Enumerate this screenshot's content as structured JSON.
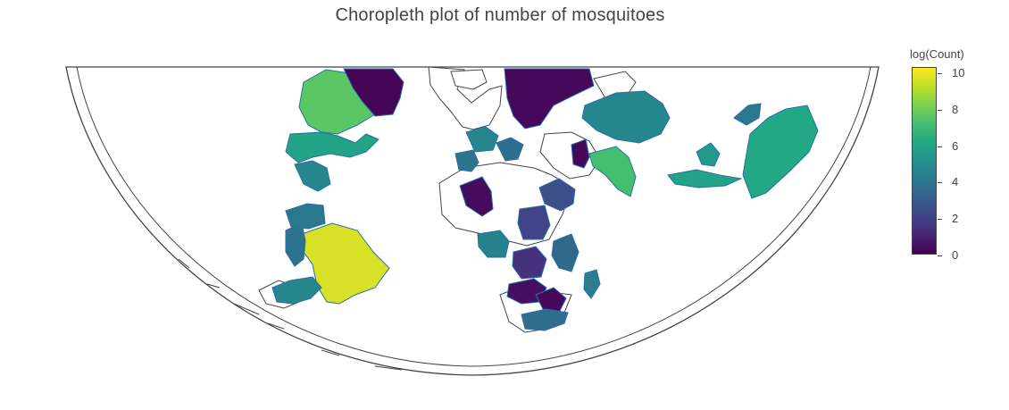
{
  "title": "Choropleth plot of number of mosquitoes",
  "colorbar": {
    "title": "log(Count)",
    "min": 0,
    "max": 10,
    "ticks": [
      "10",
      "8",
      "6",
      "4",
      "2",
      "0"
    ],
    "colors": [
      "#440154",
      "#482475",
      "#414487",
      "#355f8d",
      "#2a788e",
      "#21918c",
      "#22a884",
      "#44bf70",
      "#7ad151",
      "#bddf26",
      "#fde725"
    ]
  },
  "map": {
    "projection": "hemispheric-curved",
    "border_color": "#444444",
    "land_outline_color": "#444444",
    "region_stroke_color": "#2a6ea8"
  },
  "regions": [
    {
      "name": "Brazil",
      "value": 9.4
    },
    {
      "name": "Canada",
      "value": 7.4
    },
    {
      "name": "India",
      "value": 7.0
    },
    {
      "name": "Australia",
      "value": 6.0
    },
    {
      "name": "United States",
      "value": 5.8
    },
    {
      "name": "China",
      "value": 4.6
    },
    {
      "name": "Greenland",
      "value": 0.1
    },
    {
      "name": "Russia",
      "value": 0.2
    },
    {
      "name": "Algeria",
      "value": 0.3
    },
    {
      "name": "Zambia",
      "value": 0.4
    },
    {
      "name": "Zimbabwe",
      "value": 0.2
    },
    {
      "name": "Saudi Arabia",
      "value": 2.4
    },
    {
      "name": "Sudan",
      "value": 2.0
    },
    {
      "name": "South Africa",
      "value": 3.6
    },
    {
      "name": "Argentina",
      "value": 4.6
    },
    {
      "name": "Peru",
      "value": 3.8
    },
    {
      "name": "Colombia",
      "value": 4.0
    },
    {
      "name": "Indonesia",
      "value": 5.8
    },
    {
      "name": "Japan",
      "value": 4.0
    },
    {
      "name": "Thailand",
      "value": 5.4
    },
    {
      "name": "Pakistan",
      "value": 0.2
    },
    {
      "name": "Kenya",
      "value": 3.4
    },
    {
      "name": "Madagascar",
      "value": 4.2
    },
    {
      "name": "Congo",
      "value": 1.4
    },
    {
      "name": "Nigeria",
      "value": 4.4
    },
    {
      "name": "Mexico",
      "value": 4.6
    },
    {
      "name": "Spain",
      "value": 3.8
    },
    {
      "name": "France",
      "value": 4.6
    },
    {
      "name": "Italy",
      "value": 3.6
    }
  ]
}
